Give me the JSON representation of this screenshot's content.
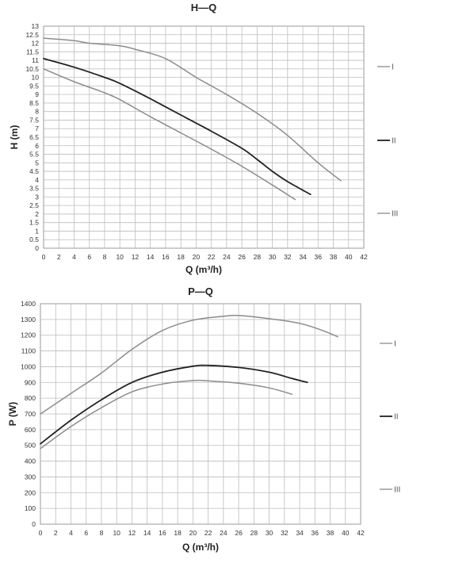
{
  "chart_data": [
    {
      "type": "line",
      "title": "H—Q",
      "xlabel": "Q (m³/h)",
      "ylabel": "H (m)",
      "xlim": [
        0,
        42
      ],
      "ylim": [
        0,
        13
      ],
      "x_ticks": [
        "0",
        "2",
        "4",
        "6",
        "8",
        "10",
        "12",
        "14",
        "16",
        "18",
        "20",
        "22",
        "24",
        "26",
        "28",
        "30",
        "32",
        "34",
        "36",
        "38",
        "40",
        "42"
      ],
      "y_ticks": [
        "0",
        "0.5",
        "1",
        "1.5",
        "2",
        "2.5",
        "3",
        "3.5",
        "4",
        "4.5",
        "5",
        "5.5",
        "6",
        "6.5",
        "7",
        "7.5",
        "8",
        "8.5",
        "9",
        "9.5",
        "10",
        "10.5",
        "11",
        "11.5",
        "12",
        "12.5",
        "13"
      ],
      "grid": true,
      "legend_position": "right",
      "series": [
        {
          "name": "I",
          "color": "#8c8c8c",
          "points": [
            [
              0,
              12.3
            ],
            [
              4,
              12.15
            ],
            [
              6,
              12.0
            ],
            [
              10,
              11.85
            ],
            [
              12,
              11.65
            ],
            [
              16,
              11.1
            ],
            [
              20,
              10.0
            ],
            [
              24,
              9.0
            ],
            [
              28,
              7.9
            ],
            [
              32,
              6.6
            ],
            [
              36,
              5.0
            ],
            [
              39,
              3.95
            ]
          ]
        },
        {
          "name": "II",
          "color": "#222222",
          "points": [
            [
              0,
              11.1
            ],
            [
              4,
              10.6
            ],
            [
              8,
              10.0
            ],
            [
              10,
              9.65
            ],
            [
              14,
              8.75
            ],
            [
              18,
              7.8
            ],
            [
              22,
              6.85
            ],
            [
              26,
              5.85
            ],
            [
              28,
              5.2
            ],
            [
              30,
              4.5
            ],
            [
              32,
              3.9
            ],
            [
              35,
              3.15
            ]
          ]
        },
        {
          "name": "III",
          "color": "#8c8c8c",
          "points": [
            [
              0,
              10.5
            ],
            [
              4,
              9.75
            ],
            [
              8,
              9.1
            ],
            [
              10,
              8.7
            ],
            [
              14,
              7.7
            ],
            [
              18,
              6.75
            ],
            [
              22,
              5.8
            ],
            [
              26,
              4.8
            ],
            [
              30,
              3.7
            ],
            [
              33,
              2.85
            ]
          ]
        }
      ]
    },
    {
      "type": "line",
      "title": "P—Q",
      "xlabel": "Q (m³/h)",
      "ylabel": "P (W)",
      "xlim": [
        0,
        42
      ],
      "ylim": [
        0,
        1400
      ],
      "x_ticks": [
        "0",
        "2",
        "4",
        "6",
        "8",
        "10",
        "12",
        "14",
        "16",
        "18",
        "20",
        "22",
        "24",
        "26",
        "28",
        "30",
        "32",
        "34",
        "36",
        "38",
        "40",
        "42"
      ],
      "y_ticks": [
        "0",
        "100",
        "200",
        "300",
        "400",
        "500",
        "600",
        "700",
        "800",
        "900",
        "1000",
        "1100",
        "1200",
        "1300",
        "1400"
      ],
      "grid": true,
      "legend_position": "right",
      "series": [
        {
          "name": "I",
          "color": "#8c8c8c",
          "points": [
            [
              0,
              700
            ],
            [
              4,
              830
            ],
            [
              8,
              960
            ],
            [
              12,
              1110
            ],
            [
              16,
              1230
            ],
            [
              20,
              1295
            ],
            [
              24,
              1320
            ],
            [
              26,
              1325
            ],
            [
              30,
              1305
            ],
            [
              34,
              1275
            ],
            [
              37,
              1230
            ],
            [
              39,
              1190
            ]
          ]
        },
        {
          "name": "II",
          "color": "#222222",
          "points": [
            [
              0,
              510
            ],
            [
              4,
              660
            ],
            [
              8,
              790
            ],
            [
              12,
              900
            ],
            [
              16,
              965
            ],
            [
              20,
              1003
            ],
            [
              22,
              1008
            ],
            [
              26,
              995
            ],
            [
              30,
              965
            ],
            [
              33,
              925
            ],
            [
              35,
              900
            ]
          ]
        },
        {
          "name": "III",
          "color": "#8c8c8c",
          "points": [
            [
              0,
              480
            ],
            [
              4,
              620
            ],
            [
              8,
              740
            ],
            [
              12,
              840
            ],
            [
              16,
              890
            ],
            [
              20,
              912
            ],
            [
              22,
              910
            ],
            [
              26,
              895
            ],
            [
              30,
              865
            ],
            [
              33,
              825
            ]
          ]
        }
      ]
    }
  ]
}
